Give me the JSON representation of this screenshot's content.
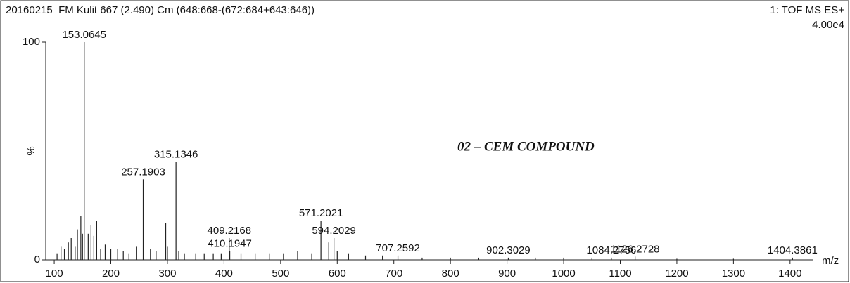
{
  "chart_data": {
    "type": "stem",
    "title": "20160215_FM Kulit 667 (2.490) Cm (648:668-(672:684+643:646))",
    "instrument": "1: TOF MS ES+",
    "intensity_scale": "4.00e4",
    "y_label": "%",
    "x_label": "m/z",
    "annotation": "02 – CEM COMPOUND",
    "color": "#222222",
    "xlim": [
      85,
      1440
    ],
    "ylim": [
      0,
      100
    ],
    "xticks": [
      100,
      200,
      300,
      400,
      500,
      600,
      700,
      800,
      900,
      1000,
      1100,
      1200,
      1300,
      1400
    ],
    "yticks": [
      0,
      100
    ],
    "peaks": {
      "x": [
        153.0645,
        257.1903,
        315.1346,
        409.2168,
        410.1947,
        571.2021,
        594.2029,
        707.2592,
        902.3029,
        1084.2756,
        1126.2728,
        1404.3861
      ],
      "values": [
        100,
        37,
        45,
        10,
        4,
        18,
        10,
        2,
        1,
        1,
        1.5,
        1
      ]
    },
    "minor_peaks": {
      "x": [
        105,
        112,
        118,
        125,
        130,
        137,
        141,
        147,
        150,
        160,
        165,
        170,
        175,
        182,
        190,
        200,
        212,
        222,
        232,
        245,
        270,
        280,
        297,
        300,
        320,
        330,
        350,
        365,
        381,
        395,
        430,
        455,
        480,
        505,
        530,
        555,
        585,
        600,
        620,
        650,
        680,
        750,
        800,
        850,
        950,
        1000,
        1050,
        1200,
        1300
      ],
      "values": [
        3,
        6,
        5,
        8,
        10,
        6,
        14,
        20,
        12,
        12,
        16,
        11,
        18,
        5,
        7,
        5,
        5,
        4,
        3,
        6,
        5,
        4,
        17,
        6,
        4,
        3,
        3,
        3,
        3,
        3,
        3,
        3,
        3,
        3,
        4,
        3,
        8,
        4,
        3,
        2,
        2,
        1,
        1,
        1,
        1,
        1,
        1,
        0.5,
        0.5
      ]
    }
  }
}
